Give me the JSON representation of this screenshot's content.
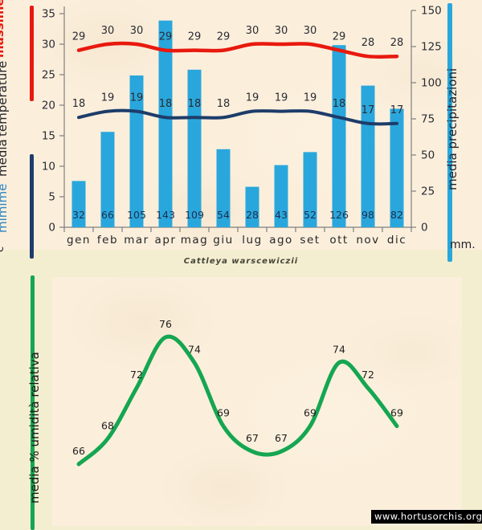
{
  "title": "Cattleya warscewiczii",
  "watermark": "www.hortusorchis.org",
  "colors": {
    "page_bg": "#f4eed0",
    "plot_bg": "#fbefdc",
    "bar": "#29a7dc",
    "max_line": "#e8190e",
    "min_line": "#1d3c6a",
    "humidity_line": "#15a651",
    "axis": "#7f7f7f",
    "tick_label": "#2b2b33",
    "data_label": "#2b2b33",
    "bar_label": "#1c2f52",
    "month_label": "#262626",
    "humidity_label": "#1e1e1e"
  },
  "top_chart": {
    "legend": {
      "massime": "massime",
      "temperature": "temperature",
      "media": "media",
      "mimime": "mimime",
      "unit_left": "c°",
      "right_label": "media  precipitazioni",
      "unit_right": "mm."
    }
  },
  "bottom_chart": {
    "axis_label": "media % umidità relativa"
  },
  "chart_data": [
    {
      "type": "bar",
      "title": "",
      "categories": [
        "gen",
        "feb",
        "mar",
        "apr",
        "mag",
        "giu",
        "lug",
        "ago",
        "set",
        "ott",
        "nov",
        "dic"
      ],
      "series": [
        {
          "name": "massime",
          "type": "line",
          "axis": "left",
          "values": [
            29,
            30,
            30,
            29,
            29,
            29,
            30,
            30,
            30,
            29,
            28,
            28
          ]
        },
        {
          "name": "mimime",
          "type": "line",
          "axis": "left",
          "values": [
            18,
            19,
            19,
            18,
            18,
            18,
            19,
            19,
            19,
            18,
            17,
            17
          ]
        },
        {
          "name": "media precipitazioni",
          "type": "bar",
          "axis": "right",
          "values": [
            32,
            66,
            105,
            143,
            109,
            54,
            28,
            43,
            52,
            126,
            98,
            82
          ]
        }
      ],
      "left_axis": {
        "label": "media temperature c°",
        "range": [
          0,
          35
        ],
        "ticks": [
          0,
          5,
          10,
          15,
          20,
          25,
          30,
          35
        ]
      },
      "right_axis": {
        "label": "media precipitazioni mm.",
        "range": [
          0,
          150
        ],
        "ticks": [
          0,
          25,
          50,
          75,
          100,
          125,
          150
        ]
      },
      "grid": false,
      "legend_position": "left-and-right-rotated"
    },
    {
      "type": "line",
      "title": "",
      "categories": [
        "gen",
        "feb",
        "mar",
        "apr",
        "mag",
        "giu",
        "lug",
        "ago",
        "set",
        "ott",
        "nov",
        "dic"
      ],
      "series": [
        {
          "name": "media % umidità relativa",
          "values": [
            66,
            68,
            72,
            76,
            74,
            69,
            67,
            67,
            69,
            74,
            72,
            69
          ]
        }
      ],
      "ylabel": "media % umidità relativa",
      "grid": false,
      "axes_hidden": true
    }
  ]
}
